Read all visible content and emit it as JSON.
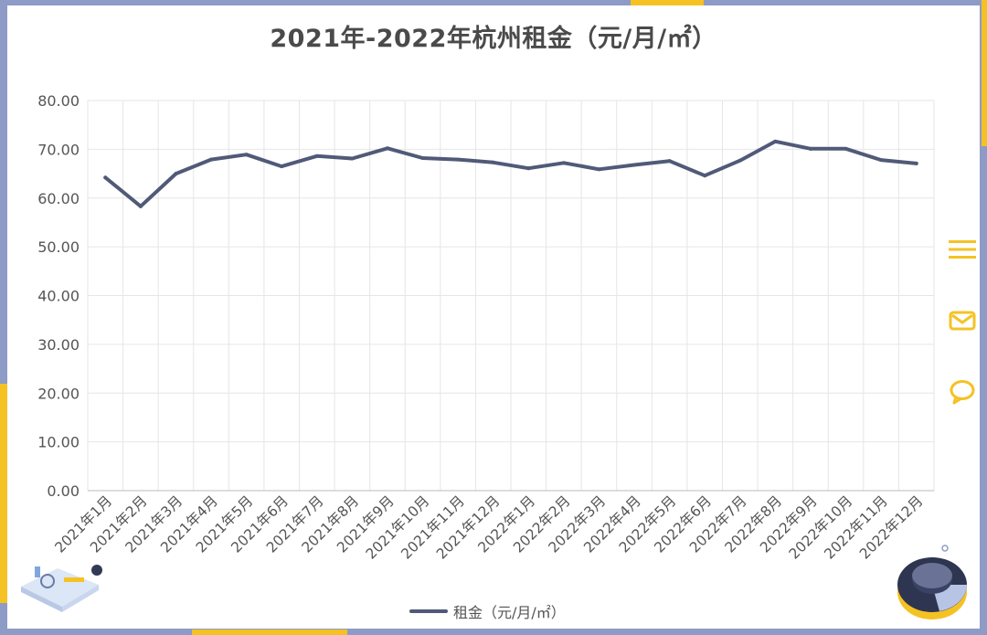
{
  "title": "2021年-2022年杭州租金（元/月/㎡）",
  "colors": {
    "line": "#505a78",
    "accent": "#f5c224",
    "frame": "#8e9bc6",
    "grid": "#e6e6e6"
  },
  "side_icons": [
    "menu-icon",
    "mail-icon",
    "chat-bubble-icon"
  ],
  "chart_data": {
    "type": "line",
    "title": "2021年-2022年杭州租金（元/月/㎡）",
    "xlabel": "",
    "ylabel": "",
    "ylim": [
      0,
      80
    ],
    "yticks": [
      "0.00",
      "10.00",
      "20.00",
      "30.00",
      "40.00",
      "50.00",
      "60.00",
      "70.00",
      "80.00"
    ],
    "grid": true,
    "legend_position": "bottom-center",
    "categories": [
      "2021年1月",
      "2021年2月",
      "2021年3月",
      "2021年4月",
      "2021年5月",
      "2021年6月",
      "2021年7月",
      "2021年8月",
      "2021年9月",
      "2021年10月",
      "2021年11月",
      "2021年12月",
      "2022年1月",
      "2022年2月",
      "2022年3月",
      "2022年4月",
      "2022年5月",
      "2022年6月",
      "2022年7月",
      "2022年8月",
      "2022年9月",
      "2022年10月",
      "2022年11月",
      "2022年12月"
    ],
    "series": [
      {
        "name": "租金（元/月/㎡）",
        "values": [
          64.2,
          58.3,
          65.0,
          67.9,
          68.9,
          66.5,
          68.6,
          68.1,
          70.2,
          68.2,
          67.9,
          67.3,
          66.1,
          67.2,
          65.9,
          66.8,
          67.6,
          64.6,
          67.7,
          71.6,
          70.1,
          70.1,
          67.8,
          67.1
        ]
      }
    ]
  }
}
